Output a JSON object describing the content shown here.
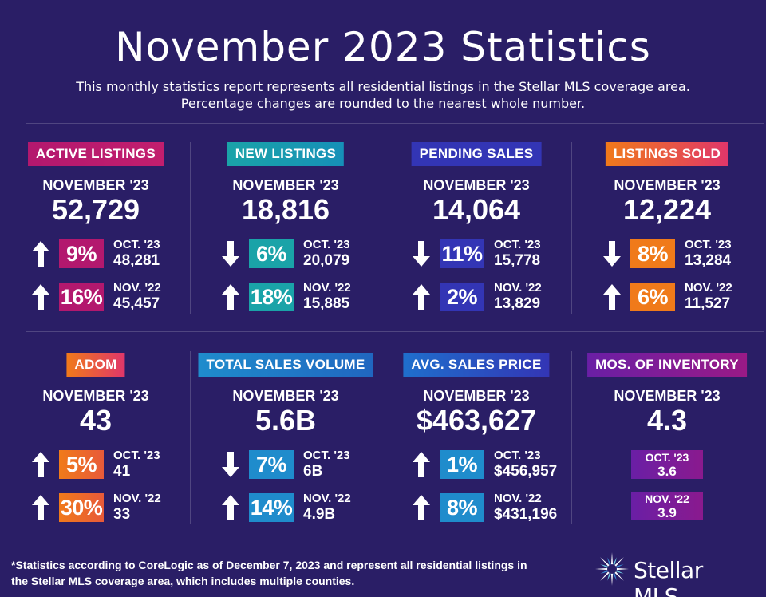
{
  "header": {
    "title": "November 2023 Statistics",
    "subtitle_line1": "This monthly statistics report represents all residential listings in the Stellar MLS coverage area.",
    "subtitle_line2": "Percentage changes are rounded to the nearest whole number."
  },
  "colors": {
    "background": "#2a1e66",
    "magenta": "#b3186e",
    "teal": "#1aa3a8",
    "blue": "#3335b5",
    "orange": "#f07a1a",
    "sky": "#1f8ccc",
    "purple": "#6a1fa5"
  },
  "cards": [
    {
      "label": "ACTIVE LISTINGS",
      "month": "NOVEMBER '23",
      "value": "52,729",
      "rows": [
        {
          "direction": "up",
          "pct": "9%",
          "label": "OCT. '23",
          "value": "48,281"
        },
        {
          "direction": "up",
          "pct": "16%",
          "label": "NOV. '22",
          "value": "45,457"
        }
      ]
    },
    {
      "label": "NEW LISTINGS",
      "month": "NOVEMBER '23",
      "value": "18,816",
      "rows": [
        {
          "direction": "down",
          "pct": "6%",
          "label": "OCT. '23",
          "value": "20,079"
        },
        {
          "direction": "up",
          "pct": "18%",
          "label": "NOV. '22",
          "value": "15,885"
        }
      ]
    },
    {
      "label": "PENDING SALES",
      "month": "NOVEMBER '23",
      "value": "14,064",
      "rows": [
        {
          "direction": "down",
          "pct": "11%",
          "label": "OCT. '23",
          "value": "15,778"
        },
        {
          "direction": "up",
          "pct": "2%",
          "label": "NOV. '22",
          "value": "13,829"
        }
      ]
    },
    {
      "label": "LISTINGS SOLD",
      "month": "NOVEMBER '23",
      "value": "12,224",
      "rows": [
        {
          "direction": "down",
          "pct": "8%",
          "label": "OCT. '23",
          "value": "13,284"
        },
        {
          "direction": "up",
          "pct": "6%",
          "label": "NOV. '22",
          "value": "11,527"
        }
      ]
    },
    {
      "label": "ADOM",
      "month": "NOVEMBER '23",
      "value": "43",
      "rows": [
        {
          "direction": "up",
          "pct": "5%",
          "label": "OCT. '23",
          "value": "41"
        },
        {
          "direction": "up",
          "pct": "30%",
          "label": "NOV. '22",
          "value": "33"
        }
      ]
    },
    {
      "label": "TOTAL SALES VOLUME",
      "month": "NOVEMBER '23",
      "value": "5.6B",
      "rows": [
        {
          "direction": "down",
          "pct": "7%",
          "label": "OCT. '23",
          "value": "6B"
        },
        {
          "direction": "up",
          "pct": "14%",
          "label": "NOV. '22",
          "value": "4.9B"
        }
      ]
    },
    {
      "label": "AVG. SALES PRICE",
      "month": "NOVEMBER '23",
      "value": "$463,627",
      "rows": [
        {
          "direction": "up",
          "pct": "1%",
          "label": "OCT. '23",
          "value": "$456,957"
        },
        {
          "direction": "up",
          "pct": "8%",
          "label": "NOV. '22",
          "value": "$431,196"
        }
      ]
    },
    {
      "label": "MOS. OF INVENTORY",
      "month": "NOVEMBER '23",
      "value": "4.3",
      "inventory": [
        {
          "label": "OCT. '23",
          "value": "3.6"
        },
        {
          "label": "NOV. '22",
          "value": "3.9"
        }
      ]
    }
  ],
  "footer": {
    "note_line1": "*Statistics according to CoreLogic as of December 7, 2023 and represent all residential listings in",
    "note_line2": "the Stellar MLS coverage area, which includes multiple counties.",
    "logo_text": "Stellar MLS",
    "logo_icon": "star-burst-logo-icon"
  }
}
